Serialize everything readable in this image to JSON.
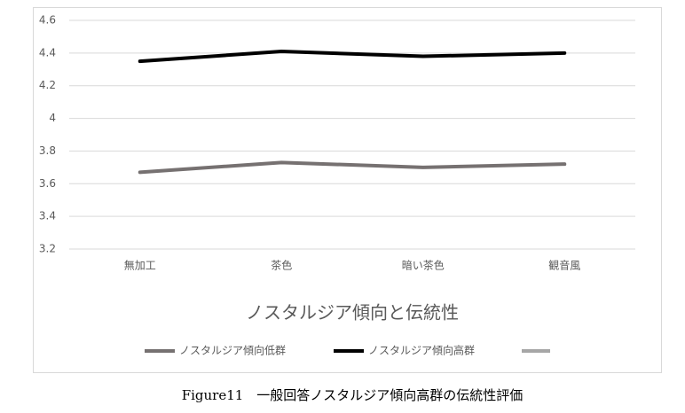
{
  "chart_data": {
    "type": "line",
    "title": "ノスタルジア傾向と伝統性",
    "categories": [
      "無加工",
      "茶色",
      "暗い茶色",
      "観音風"
    ],
    "series": [
      {
        "name": "ノスタルジア傾向低群",
        "color": "#767171",
        "values": [
          3.67,
          3.73,
          3.7,
          3.72
        ]
      },
      {
        "name": "ノスタルジア傾向高群",
        "color": "#000000",
        "values": [
          4.35,
          4.41,
          4.38,
          4.4
        ]
      }
    ],
    "ylim": [
      3.2,
      4.6
    ],
    "yticks": [
      3.2,
      3.4,
      3.6,
      3.8,
      4,
      4.2,
      4.4,
      4.6
    ],
    "grid": true
  },
  "caption": "Figure11　一般回答ノスタルジア傾向高群の伝統性評価"
}
